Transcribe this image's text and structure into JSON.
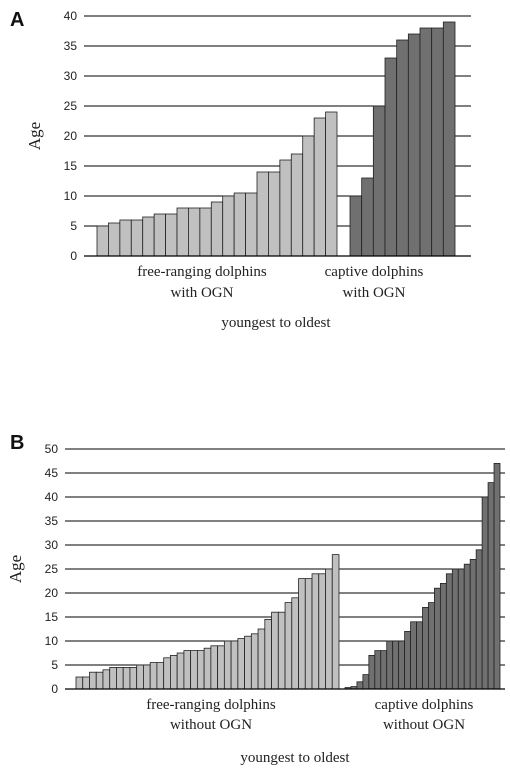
{
  "colors": {
    "free_ranging": "#c0c0c0",
    "captive": "#707070",
    "bar_stroke": "#222222",
    "grid": "#000000",
    "axis": "#555555"
  },
  "chart_data": [
    {
      "type": "bar",
      "panel_label": "A",
      "ylabel": "Age",
      "xlabel": "youngest to oldest",
      "ylim": [
        0,
        40
      ],
      "yticks": [
        0,
        5,
        10,
        15,
        20,
        25,
        30,
        35,
        40
      ],
      "grid": "horizontal",
      "series": [
        {
          "label_line1": "free-ranging dolphins",
          "label_line2": "with OGN",
          "values": [
            5,
            5.5,
            6,
            6,
            6.5,
            7,
            7,
            8,
            8,
            8,
            9,
            10,
            10.5,
            10.5,
            14,
            14,
            16,
            17,
            20,
            23,
            24
          ]
        },
        {
          "label_line1": "captive dolphins",
          "label_line2": "with OGN",
          "values": [
            10,
            13,
            25,
            33,
            36,
            37,
            38,
            38,
            39
          ]
        }
      ]
    },
    {
      "type": "bar",
      "panel_label": "B",
      "ylabel": "Age",
      "xlabel": "youngest to oldest",
      "ylim": [
        0,
        50
      ],
      "yticks": [
        0,
        5,
        10,
        15,
        20,
        25,
        30,
        35,
        40,
        45,
        50
      ],
      "grid": "horizontal",
      "series": [
        {
          "label_line1": "free-ranging dolphins",
          "label_line2": "without OGN",
          "values": [
            2.5,
            2.5,
            3.5,
            3.5,
            4,
            4.5,
            4.5,
            4.5,
            4.5,
            5,
            5,
            5.5,
            5.5,
            6.5,
            7,
            7.5,
            8,
            8,
            8,
            8.5,
            9,
            9,
            10,
            10,
            10.5,
            11,
            11.5,
            12.5,
            14.5,
            16,
            16,
            18,
            19,
            23,
            23,
            24,
            24,
            25,
            28
          ]
        },
        {
          "label_line1": "captive dolphins",
          "label_line2": "without OGN",
          "values": [
            0.3,
            0.5,
            1.5,
            3,
            7,
            8,
            8,
            10,
            10,
            10,
            12,
            14,
            14,
            17,
            18,
            21,
            22,
            24,
            25,
            25,
            26,
            27,
            29,
            40,
            43,
            47
          ]
        }
      ]
    }
  ]
}
